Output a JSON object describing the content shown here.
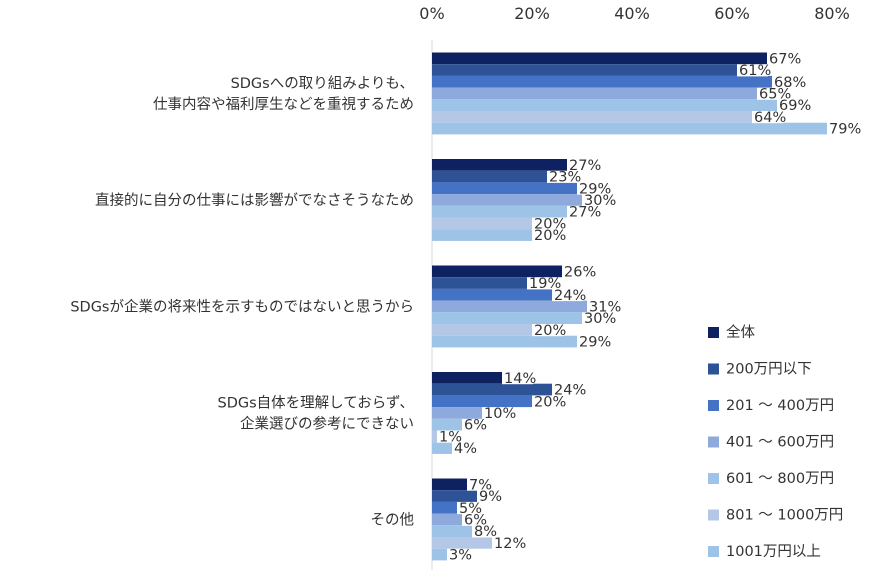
{
  "chart_data": {
    "type": "bar",
    "orientation": "horizontal",
    "xlim": [
      0,
      80
    ],
    "xticks": [
      "0%",
      "20%",
      "40%",
      "60%",
      "80%"
    ],
    "tick_values": [
      0,
      20,
      40,
      60,
      80
    ],
    "x_axis_position": "top",
    "grid": false,
    "legend_position": "right",
    "categories": [
      [
        "SDGsへの取り組みよりも、",
        "仕事内容や福利厚生などを重視するため"
      ],
      [
        "直接的に自分の仕事には影響がでなさそうなため"
      ],
      [
        "SDGsが企業の将来性を示すものではないと思うから"
      ],
      [
        "SDGs自体を理解しておらず、",
        "企業選びの参考にできない"
      ],
      [
        "その他"
      ]
    ],
    "series": [
      {
        "name": "全体",
        "color": "#0e2161",
        "values": [
          67,
          27,
          26,
          14,
          7
        ]
      },
      {
        "name": "200万円以下",
        "color": "#2e5296",
        "values": [
          61,
          23,
          19,
          24,
          9
        ]
      },
      {
        "name": "201 ～ 400万円",
        "color": "#4472c4",
        "values": [
          68,
          29,
          24,
          20,
          5
        ]
      },
      {
        "name": "401 ～ 600万円",
        "color": "#8ea9db",
        "values": [
          65,
          30,
          31,
          10,
          6
        ]
      },
      {
        "name": "601 ～ 800万円",
        "color": "#9dc3e6",
        "values": [
          69,
          27,
          30,
          6,
          8
        ]
      },
      {
        "name": "801 ～ 1000万円",
        "color": "#b4c7e7",
        "values": [
          64,
          20,
          20,
          1,
          12
        ]
      },
      {
        "name": "1001万円以上",
        "color": "#9dc3e6",
        "values": [
          79,
          20,
          29,
          4,
          3
        ]
      }
    ],
    "value_suffix": "%"
  }
}
